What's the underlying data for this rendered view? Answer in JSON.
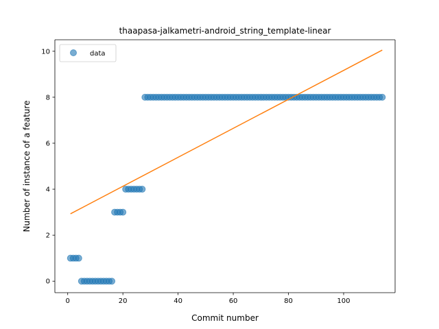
{
  "chart_data": {
    "type": "scatter",
    "title": "thaapasa-jalkametri-android_string_template-linear",
    "xlabel": "Commit number",
    "ylabel": "Number of instance of a feature",
    "xlim": [
      -4.65,
      118.65
    ],
    "ylim": [
      -0.5,
      10.5
    ],
    "xticks": [
      0,
      20,
      40,
      60,
      80,
      100
    ],
    "yticks": [
      0,
      2,
      4,
      6,
      8,
      10
    ],
    "grid": false,
    "legend": {
      "position": "top-left",
      "entries": [
        "data"
      ]
    },
    "colors": {
      "data": "#1f77b4",
      "fit": "#ff7f0e"
    },
    "series": [
      {
        "name": "data",
        "kind": "scatter",
        "points": [
          [
            1,
            1
          ],
          [
            2,
            1
          ],
          [
            3,
            1
          ],
          [
            4,
            1
          ],
          [
            5,
            0
          ],
          [
            6,
            0
          ],
          [
            7,
            0
          ],
          [
            8,
            0
          ],
          [
            9,
            0
          ],
          [
            10,
            0
          ],
          [
            11,
            0
          ],
          [
            12,
            0
          ],
          [
            13,
            0
          ],
          [
            14,
            0
          ],
          [
            15,
            0
          ],
          [
            16,
            0
          ],
          [
            17,
            3
          ],
          [
            18,
            3
          ],
          [
            19,
            3
          ],
          [
            20,
            3
          ],
          [
            21,
            4
          ],
          [
            22,
            4
          ],
          [
            23,
            4
          ],
          [
            24,
            4
          ],
          [
            25,
            4
          ],
          [
            26,
            4
          ],
          [
            27,
            4
          ],
          [
            28,
            8
          ],
          [
            29,
            8
          ],
          [
            30,
            8
          ],
          [
            31,
            8
          ],
          [
            32,
            8
          ],
          [
            33,
            8
          ],
          [
            34,
            8
          ],
          [
            35,
            8
          ],
          [
            36,
            8
          ],
          [
            37,
            8
          ],
          [
            38,
            8
          ],
          [
            39,
            8
          ],
          [
            40,
            8
          ],
          [
            41,
            8
          ],
          [
            42,
            8
          ],
          [
            43,
            8
          ],
          [
            44,
            8
          ],
          [
            45,
            8
          ],
          [
            46,
            8
          ],
          [
            47,
            8
          ],
          [
            48,
            8
          ],
          [
            49,
            8
          ],
          [
            50,
            8
          ],
          [
            51,
            8
          ],
          [
            52,
            8
          ],
          [
            53,
            8
          ],
          [
            54,
            8
          ],
          [
            55,
            8
          ],
          [
            56,
            8
          ],
          [
            57,
            8
          ],
          [
            58,
            8
          ],
          [
            59,
            8
          ],
          [
            60,
            8
          ],
          [
            61,
            8
          ],
          [
            62,
            8
          ],
          [
            63,
            8
          ],
          [
            64,
            8
          ],
          [
            65,
            8
          ],
          [
            66,
            8
          ],
          [
            67,
            8
          ],
          [
            68,
            8
          ],
          [
            69,
            8
          ],
          [
            70,
            8
          ],
          [
            71,
            8
          ],
          [
            72,
            8
          ],
          [
            73,
            8
          ],
          [
            74,
            8
          ],
          [
            75,
            8
          ],
          [
            76,
            8
          ],
          [
            77,
            8
          ],
          [
            78,
            8
          ],
          [
            79,
            8
          ],
          [
            80,
            8
          ],
          [
            81,
            8
          ],
          [
            82,
            8
          ],
          [
            83,
            8
          ],
          [
            84,
            8
          ],
          [
            85,
            8
          ],
          [
            86,
            8
          ],
          [
            87,
            8
          ],
          [
            88,
            8
          ],
          [
            89,
            8
          ],
          [
            90,
            8
          ],
          [
            91,
            8
          ],
          [
            92,
            8
          ],
          [
            93,
            8
          ],
          [
            94,
            8
          ],
          [
            95,
            8
          ],
          [
            96,
            8
          ],
          [
            97,
            8
          ],
          [
            98,
            8
          ],
          [
            99,
            8
          ],
          [
            100,
            8
          ],
          [
            101,
            8
          ],
          [
            102,
            8
          ],
          [
            103,
            8
          ],
          [
            104,
            8
          ],
          [
            105,
            8
          ],
          [
            106,
            8
          ],
          [
            107,
            8
          ],
          [
            108,
            8
          ],
          [
            109,
            8
          ],
          [
            110,
            8
          ],
          [
            111,
            8
          ],
          [
            112,
            8
          ],
          [
            113,
            8
          ],
          [
            114,
            8
          ]
        ]
      },
      {
        "kind": "line",
        "points": [
          [
            1,
            2.93
          ],
          [
            114,
            10.05
          ]
        ]
      }
    ]
  }
}
